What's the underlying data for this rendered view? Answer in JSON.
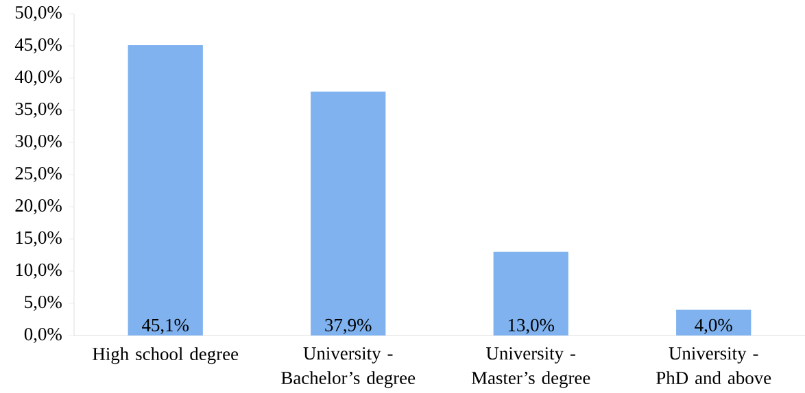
{
  "chart_data": {
    "type": "bar",
    "categories": [
      "High school degree",
      "University - Bachelor’s degree",
      "University - Master’s degree",
      "University - PhD and above"
    ],
    "values": [
      45.1,
      37.9,
      13.0,
      4.0
    ],
    "value_labels": [
      "45,1%",
      "37,9%",
      "13,0%",
      "4,0%"
    ],
    "color": "#7fb2ee",
    "ylim": [
      0,
      50
    ],
    "yticks": [
      {
        "value": 0,
        "label": "0,0%"
      },
      {
        "value": 5,
        "label": "5,0%"
      },
      {
        "value": 10,
        "label": "10,0%"
      },
      {
        "value": 15,
        "label": "15,0%"
      },
      {
        "value": 20,
        "label": "20,0%"
      },
      {
        "value": 25,
        "label": "25,0%"
      },
      {
        "value": 30,
        "label": "30,0%"
      },
      {
        "value": 35,
        "label": "35,0%"
      },
      {
        "value": 40,
        "label": "40,0%"
      },
      {
        "value": 45,
        "label": "45,0%"
      },
      {
        "value": 50,
        "label": "50,0%"
      }
    ],
    "grid": false
  }
}
